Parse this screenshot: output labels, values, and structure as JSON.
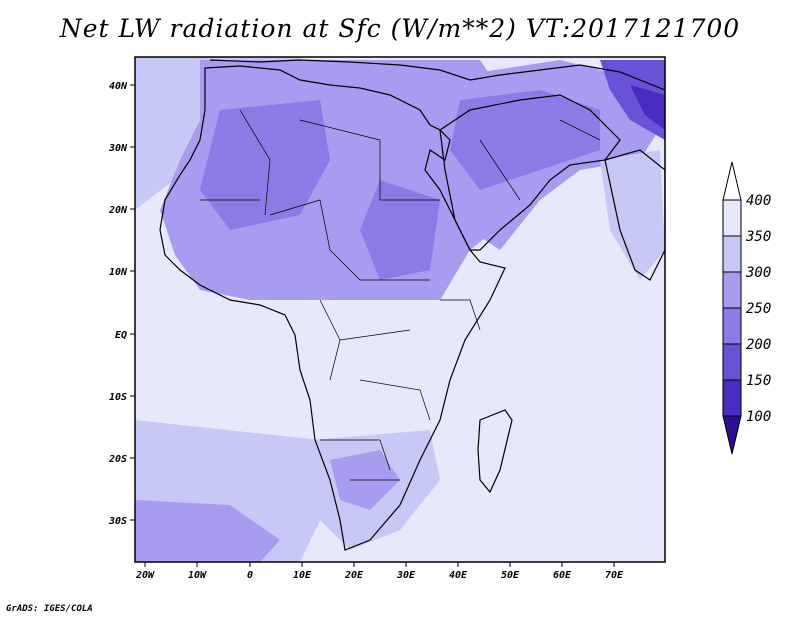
{
  "title": "Net LW radiation at Sfc (W/m**2) VT:2017121700",
  "credit": "GrADS: IGES/COLA",
  "map": {
    "lon_ticks": [
      "20W",
      "10W",
      "0",
      "10E",
      "20E",
      "30E",
      "40E",
      "50E",
      "60E",
      "70E"
    ],
    "lat_ticks": [
      "40N",
      "30N",
      "20N",
      "10N",
      "EQ",
      "10S",
      "20S",
      "30S"
    ]
  },
  "colorbar": {
    "labels": [
      "400",
      "350",
      "300",
      "250",
      "200",
      "150",
      "100"
    ],
    "colors": [
      "#e8e8fc",
      "#c8c8f6",
      "#a89cf0",
      "#8c7ae6",
      "#6a52d6",
      "#4a2cc2",
      "#2e0c9a"
    ]
  }
}
